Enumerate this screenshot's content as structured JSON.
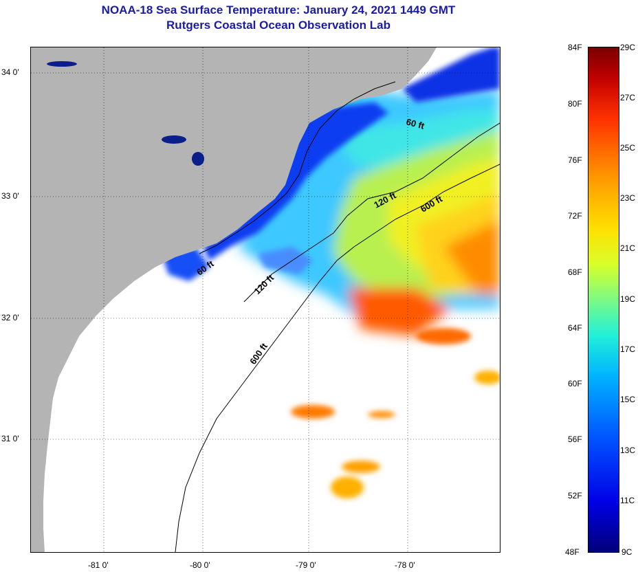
{
  "title": {
    "line1": "NOAA-18 Sea Surface Temperature:  January 24, 2021 1449 GMT",
    "line2": "Rutgers Coastal Ocean Observation Lab"
  },
  "map": {
    "lon_ticks": [
      "-81 0'",
      "-80 0'",
      "-79 0'",
      "-78 0'"
    ],
    "lat_ticks": [
      "34 0'",
      "33 0'",
      "32 0'",
      "31 0'"
    ],
    "contour_labels": [
      "60 ft",
      "120 ft",
      "600 ft",
      "60 ft",
      "120 ft",
      "600 ft"
    ],
    "colors": {
      "land": "#b4b4b4",
      "cloud": "#ffffff"
    }
  },
  "colorbar": {
    "fahrenheit": [
      "84F",
      "80F",
      "76F",
      "72F",
      "68F",
      "64F",
      "60F",
      "56F",
      "52F",
      "48F"
    ],
    "celsius": [
      "29C",
      "27C",
      "25C",
      "23C",
      "21C",
      "19C",
      "17C",
      "15C",
      "13C",
      "11C",
      "9C"
    ]
  }
}
